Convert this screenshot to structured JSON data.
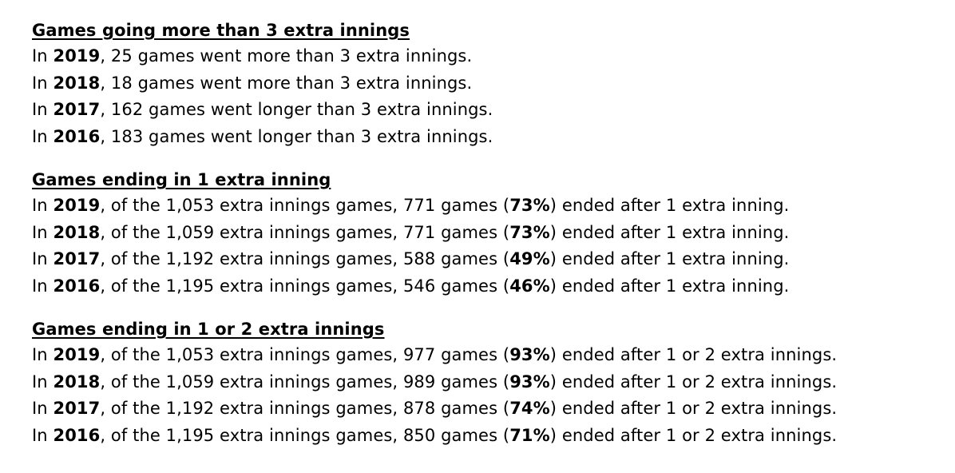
{
  "sections": [
    {
      "heading": "Games going more than 3 extra innings",
      "lines": [
        {
          "pre": "In ",
          "year": "2019",
          "mid": ", 25 games went more than 3 extra innings.",
          "pct": "",
          "post": ""
        },
        {
          "pre": "In ",
          "year": "2018",
          "mid": ", 18 games went more than 3 extra innings.",
          "pct": "",
          "post": ""
        },
        {
          "pre": "In ",
          "year": "2017",
          "mid": ", 162 games went longer than 3 extra innings.",
          "pct": "",
          "post": ""
        },
        {
          "pre": "In ",
          "year": "2016",
          "mid": ", 183 games went longer than 3 extra innings.",
          "pct": "",
          "post": ""
        }
      ]
    },
    {
      "heading": "Games ending in 1 extra inning",
      "lines": [
        {
          "pre": "In ",
          "year": "2019",
          "mid": ", of the 1,053 extra innings games, 771 games (",
          "pct": "73%",
          "post": ") ended after 1 extra inning."
        },
        {
          "pre": "In ",
          "year": "2018",
          "mid": ", of the 1,059 extra innings games, 771 games (",
          "pct": "73%",
          "post": ") ended after 1 extra inning."
        },
        {
          "pre": "In ",
          "year": "2017",
          "mid": ", of the 1,192 extra innings games, 588 games (",
          "pct": "49%",
          "post": ") ended after 1 extra inning."
        },
        {
          "pre": "In ",
          "year": "2016",
          "mid": ", of the 1,195 extra innings games, 546 games (",
          "pct": "46%",
          "post": ") ended after 1 extra inning."
        }
      ]
    },
    {
      "heading": "Games ending in 1 or 2 extra innings",
      "lines": [
        {
          "pre": "In ",
          "year": "2019",
          "mid": ", of the 1,053 extra innings games, 977 games (",
          "pct": "93%",
          "post": ") ended after 1 or 2 extra innings."
        },
        {
          "pre": "In ",
          "year": "2018",
          "mid": ", of the 1,059 extra innings games, 989 games (",
          "pct": "93%",
          "post": ") ended after 1 or 2 extra innings."
        },
        {
          "pre": "In ",
          "year": "2017",
          "mid": ", of the 1,192 extra innings games, 878 games (",
          "pct": "74%",
          "post": ") ended after 1 or 2 extra innings."
        },
        {
          "pre": "In ",
          "year": "2016",
          "mid": ", of the 1,195 extra innings games, 850 games (",
          "pct": "71%",
          "post": ") ended after 1 or 2 extra innings."
        }
      ]
    }
  ]
}
